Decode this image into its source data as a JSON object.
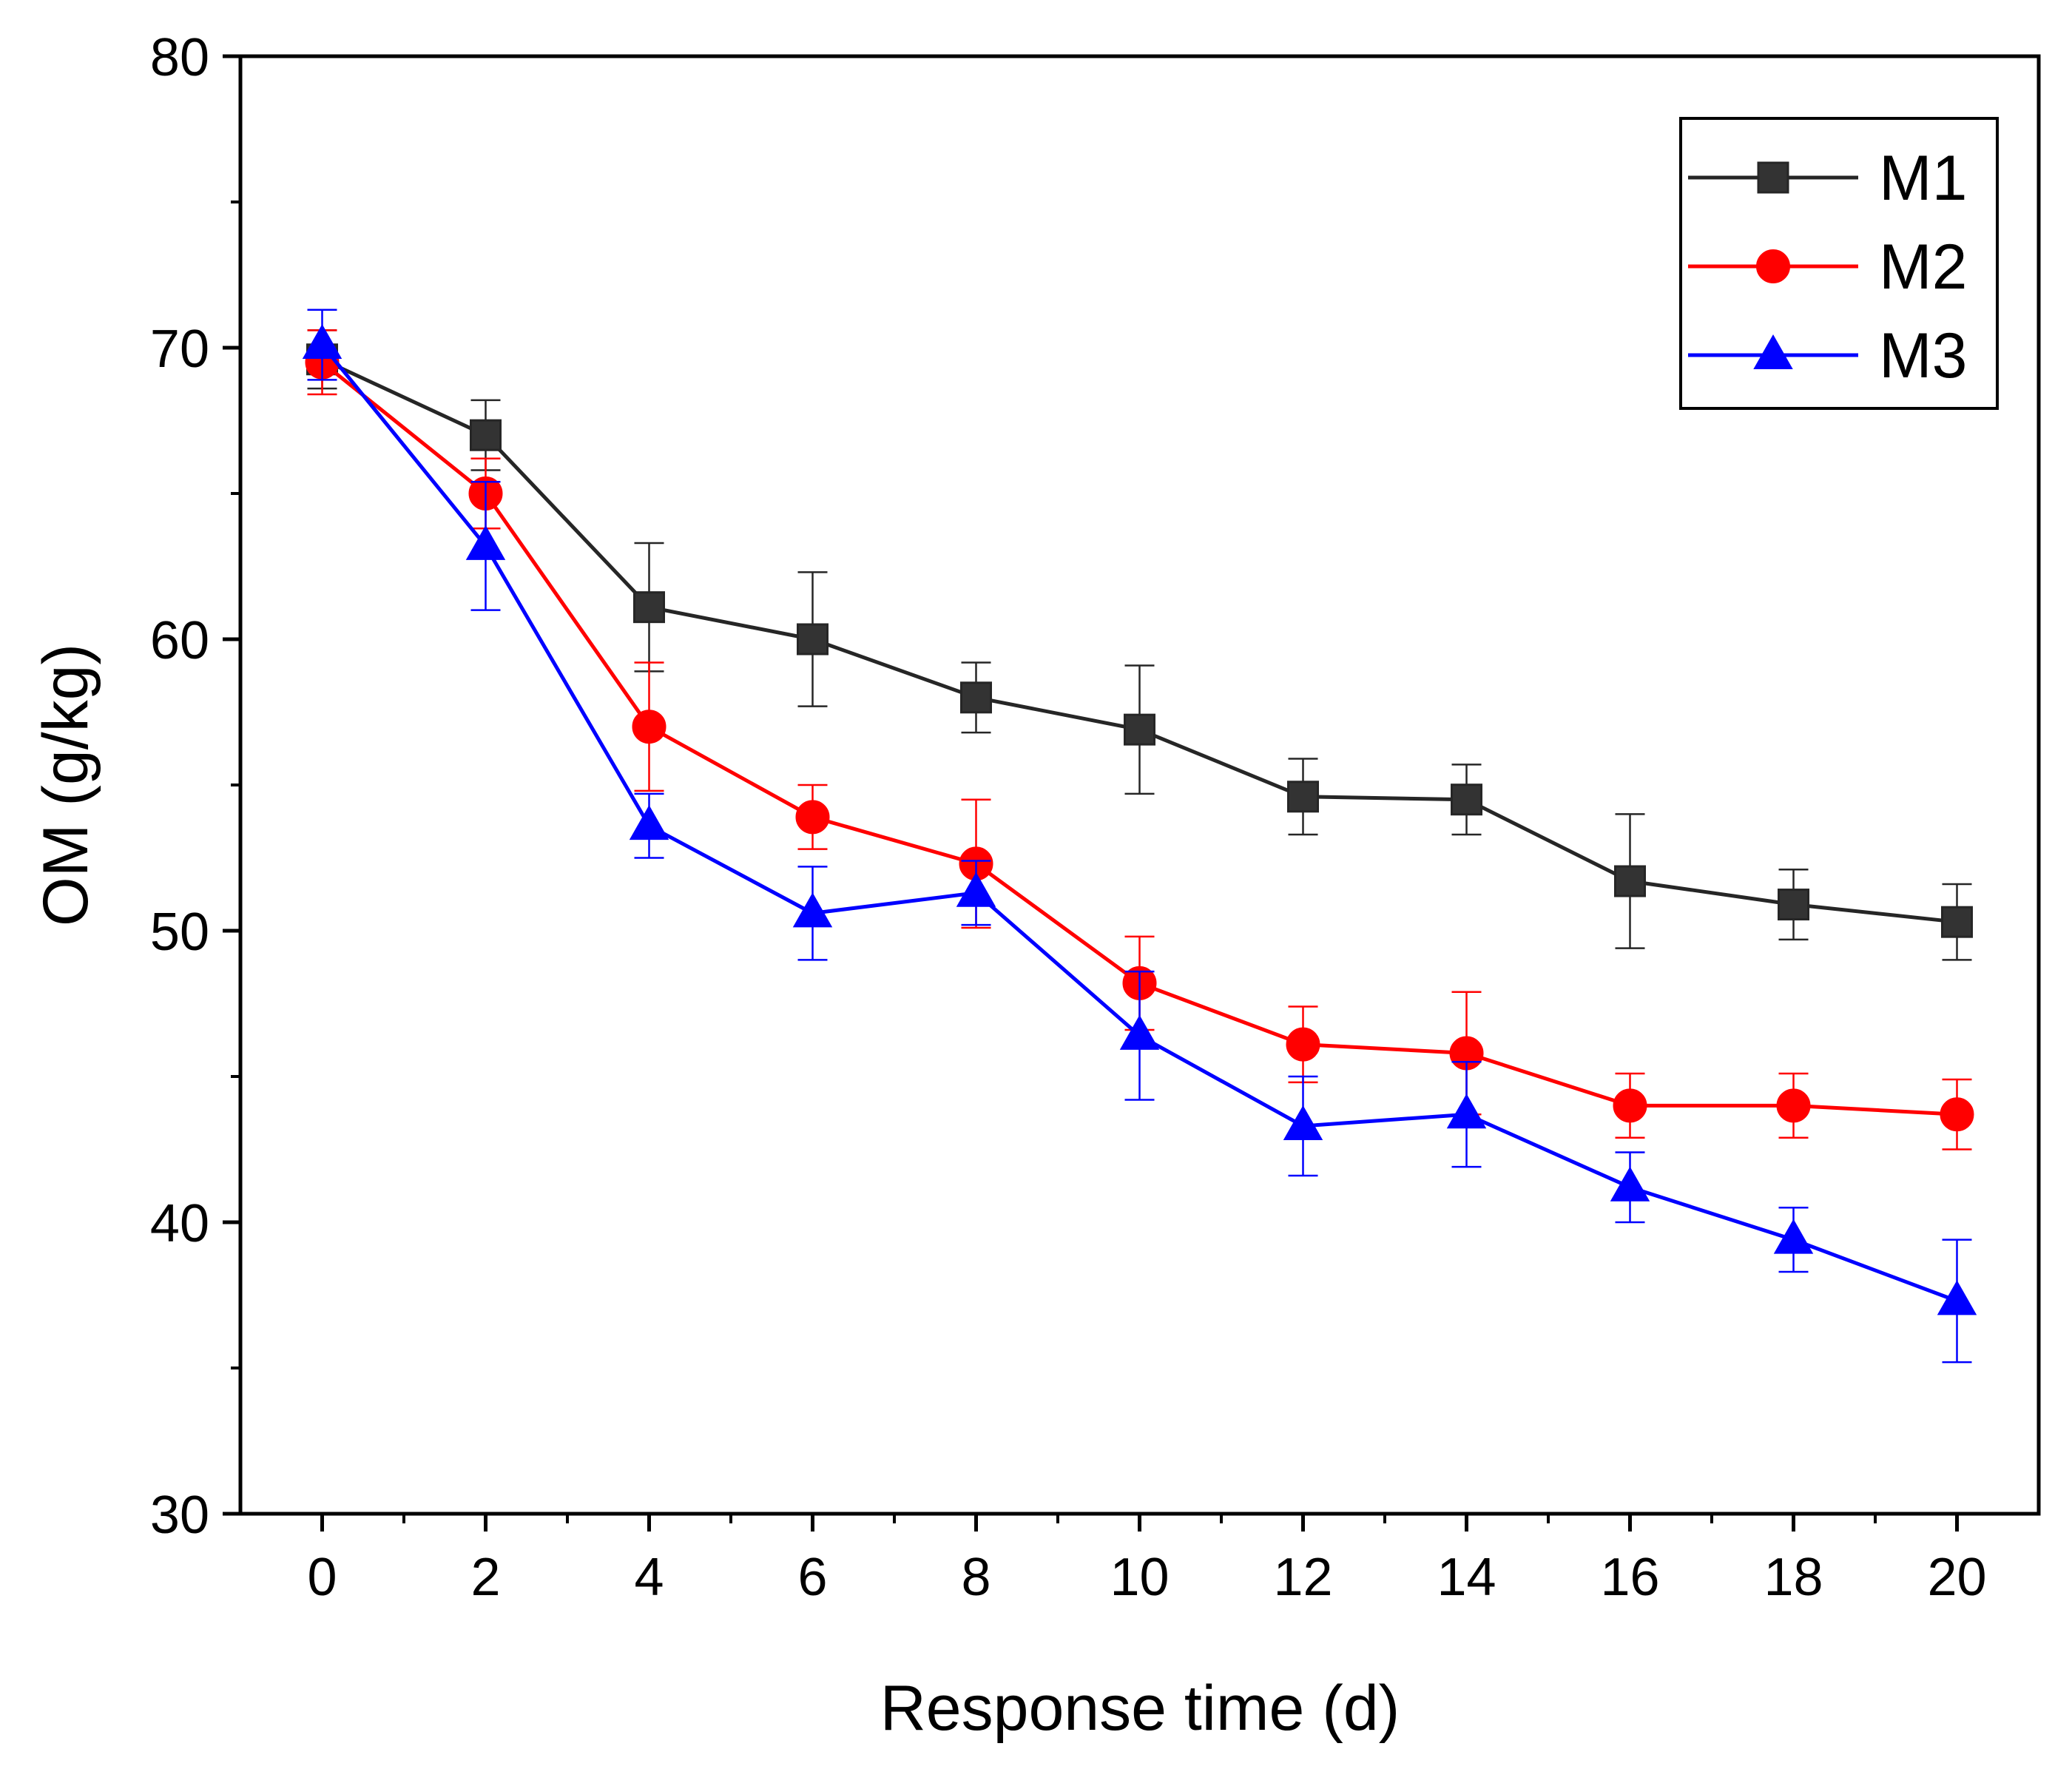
{
  "chart_data": {
    "type": "line",
    "title": "",
    "xlabel": "Response time (d)",
    "ylabel": "OM (g/kg)",
    "xlim": [
      -1,
      21
    ],
    "ylim": [
      30,
      80
    ],
    "x": [
      0,
      2,
      4,
      6,
      8,
      10,
      12,
      14,
      16,
      18,
      20
    ],
    "x_ticks": [
      "0",
      "2",
      "4",
      "6",
      "8",
      "10",
      "12",
      "14",
      "16",
      "18",
      "20"
    ],
    "y_ticks": [
      "30",
      "40",
      "50",
      "60",
      "70",
      "80"
    ],
    "grid": false,
    "legend_position": "top-right",
    "series": [
      {
        "name": "M1",
        "color": "#1a1a1a",
        "marker": "square",
        "values": [
          69.6,
          67.0,
          61.1,
          60.0,
          58.0,
          56.9,
          54.6,
          54.5,
          51.7,
          50.9,
          50.3
        ],
        "errors": [
          1.0,
          1.2,
          2.2,
          2.3,
          1.2,
          2.2,
          1.3,
          1.2,
          2.3,
          1.2,
          1.3
        ]
      },
      {
        "name": "M2",
        "color": "#ff0000",
        "marker": "circle",
        "values": [
          69.5,
          65.0,
          57.0,
          53.9,
          52.3,
          48.2,
          46.1,
          45.8,
          44.0,
          44.0,
          43.7
        ],
        "errors": [
          1.1,
          1.2,
          2.2,
          1.1,
          2.2,
          1.6,
          1.3,
          2.1,
          1.1,
          1.1,
          1.2
        ]
      },
      {
        "name": "M3",
        "color": "#0000ff",
        "marker": "triangle",
        "values": [
          70.1,
          63.2,
          53.6,
          50.6,
          51.3,
          46.4,
          43.3,
          43.7,
          41.2,
          39.4,
          37.3
        ],
        "errors": [
          1.2,
          2.2,
          1.1,
          1.6,
          1.1,
          2.2,
          1.7,
          1.8,
          1.2,
          1.1,
          2.1
        ]
      }
    ]
  }
}
